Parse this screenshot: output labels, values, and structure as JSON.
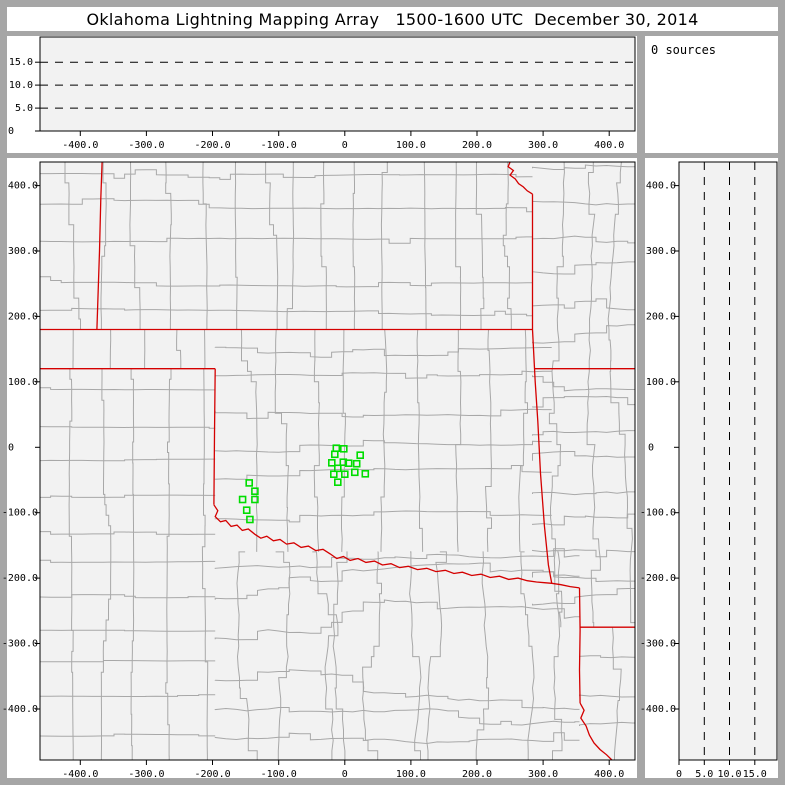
{
  "window": {
    "title": "Oklahoma Lightning Mapping Array   1500-1600 UTC  December 30, 2014"
  },
  "colors": {
    "chrome": "#a6a6a6",
    "panel_bg": "#ffffff",
    "plot_bg": "#f2f2f2",
    "frame": "#000000",
    "county_line": "#a8a8a8",
    "state_border": "#d40000",
    "station": "#00dd00",
    "text": "#000000"
  },
  "chart_data": [
    {
      "id": "alt_ew",
      "type": "scatter",
      "description": "altitude vs east-west distance, empty (no sources)",
      "xlim": [
        -461,
        439
      ],
      "ylim": [
        0,
        20.5
      ],
      "xticks": [
        -400,
        -300,
        -200,
        -100,
        0,
        100,
        200,
        300,
        400
      ],
      "xtick_labels": [
        "-400.0",
        "-300.0",
        "-200.0",
        "-100.0",
        "0",
        "100.0",
        "200.0",
        "300.0",
        "400.0"
      ],
      "yticks": [
        15,
        10,
        5,
        0
      ],
      "ytick_labels": [
        "15.0",
        "10.0",
        "5.0",
        "0"
      ],
      "dashed_y": [
        5,
        10,
        15
      ],
      "points": []
    },
    {
      "id": "sources_hist",
      "type": "histogram",
      "label": "0 sources",
      "points": []
    },
    {
      "id": "map",
      "type": "scatter",
      "description": "plan-view map, green squares are LMA stations, km coordinates",
      "xlim": [
        -461,
        439
      ],
      "ylim": [
        -478,
        436
      ],
      "xticks": [
        -400,
        -300,
        -200,
        -100,
        0,
        100,
        200,
        300,
        400
      ],
      "xtick_labels": [
        "-400.0",
        "-300.0",
        "-200.0",
        "-100.0",
        "0",
        "100.0",
        "200.0",
        "300.0",
        "400.0"
      ],
      "yticks": [
        400,
        300,
        200,
        100,
        0,
        -100,
        -200,
        -300,
        -400
      ],
      "ytick_labels": [
        "400.0",
        "300.0",
        "200.0",
        "100.0",
        "0",
        "-100.0",
        "-200.0",
        "-300.0",
        "-400.0"
      ],
      "stations": [
        [
          -12.8,
          -1.5
        ],
        [
          -1.5,
          -2.3
        ],
        [
          -15.1,
          -10.7
        ],
        [
          23.4,
          -12.2
        ],
        [
          -19.6,
          -23.7
        ],
        [
          -2.3,
          -22.9
        ],
        [
          6.0,
          -24.4
        ],
        [
          18.1,
          -25.2
        ],
        [
          -10.6,
          -32.1
        ],
        [
          15.1,
          -38.2
        ],
        [
          -16.6,
          -41.2
        ],
        [
          0.0,
          -41.2
        ],
        [
          31.0,
          -40.5
        ],
        [
          -10.6,
          -53.4
        ],
        [
          -144.6,
          -54.5
        ],
        [
          -136.0,
          -67.2
        ],
        [
          -154.5,
          -79.8
        ],
        [
          -136.0,
          -79.8
        ],
        [
          -148.3,
          -96.2
        ],
        [
          -143.5,
          -110.4
        ]
      ],
      "state_borders": [
        [
          [
            -461,
            180
          ],
          [
            284,
            180
          ]
        ],
        [
          [
            250,
            436
          ],
          [
            247,
            429
          ],
          [
            255,
            423
          ],
          [
            250,
            416
          ],
          [
            258,
            410
          ],
          [
            263,
            403
          ],
          [
            270,
            398
          ],
          [
            276,
            392
          ],
          [
            284,
            387
          ]
        ],
        [
          [
            284,
            387
          ],
          [
            284,
            180
          ],
          [
            288,
            100
          ],
          [
            292,
            40
          ],
          [
            296,
            -40
          ],
          [
            302,
            -120
          ],
          [
            308,
            -180
          ],
          [
            313,
            -208
          ]
        ],
        [
          [
            287,
            120
          ],
          [
            439,
            120
          ]
        ],
        [
          [
            -367,
            436
          ],
          [
            -369,
            380
          ],
          [
            -371,
            300
          ],
          [
            -373,
            240
          ],
          [
            -375,
            180
          ]
        ],
        [
          [
            -461,
            120
          ],
          [
            -196,
            120
          ]
        ],
        [
          [
            -196,
            120
          ],
          [
            -197,
            20
          ],
          [
            -198,
            -88
          ]
        ],
        [
          [
            -198,
            -88
          ],
          [
            -192,
            -97
          ],
          [
            -196,
            -106
          ],
          [
            -188,
            -114
          ],
          [
            -180,
            -112
          ],
          [
            -172,
            -121
          ],
          [
            -163,
            -119
          ],
          [
            -155,
            -127
          ],
          [
            -146,
            -125
          ],
          [
            -136,
            -133
          ],
          [
            -127,
            -139
          ],
          [
            -118,
            -136
          ],
          [
            -108,
            -143
          ],
          [
            -98,
            -141
          ],
          [
            -88,
            -148
          ],
          [
            -77,
            -146
          ],
          [
            -66,
            -153
          ],
          [
            -55,
            -151
          ],
          [
            -44,
            -158
          ],
          [
            -33,
            -156
          ],
          [
            -22,
            -163
          ],
          [
            -12,
            -170
          ],
          [
            -2,
            -167
          ],
          [
            8,
            -173
          ],
          [
            20,
            -170
          ],
          [
            32,
            -176
          ],
          [
            45,
            -174
          ],
          [
            57,
            -180
          ],
          [
            70,
            -178
          ],
          [
            83,
            -184
          ],
          [
            96,
            -182
          ],
          [
            110,
            -187
          ],
          [
            124,
            -185
          ],
          [
            138,
            -190
          ],
          [
            152,
            -188
          ],
          [
            165,
            -193
          ],
          [
            178,
            -191
          ],
          [
            192,
            -196
          ],
          [
            206,
            -194
          ],
          [
            220,
            -199
          ],
          [
            234,
            -197
          ],
          [
            248,
            -202
          ],
          [
            262,
            -200
          ],
          [
            276,
            -204
          ],
          [
            290,
            -206
          ],
          [
            302,
            -207
          ],
          [
            313,
            -208
          ],
          [
            327,
            -210
          ],
          [
            341,
            -213
          ],
          [
            355,
            -215
          ]
        ],
        [
          [
            355,
            -215
          ],
          [
            356,
            -280
          ],
          [
            355,
            -340
          ],
          [
            356,
            -391
          ]
        ],
        [
          [
            355,
            -275
          ],
          [
            439,
            -275
          ]
        ],
        [
          [
            356,
            -391
          ],
          [
            362,
            -402
          ],
          [
            357,
            -414
          ],
          [
            365,
            -426
          ],
          [
            370,
            -440
          ],
          [
            377,
            -452
          ],
          [
            386,
            -462
          ],
          [
            396,
            -470
          ],
          [
            404,
            -478
          ]
        ]
      ],
      "county_regions": [
        {
          "x": [
            -461,
            284
          ],
          "y": [
            180,
            436
          ],
          "cw": 50,
          "ch": 47,
          "jog": 8,
          "wig": 1,
          "seed": 11
        },
        {
          "x": [
            284,
            439
          ],
          "y": [
            -275,
            436
          ],
          "cw": 50,
          "ch": 46,
          "jog": 14,
          "wig": 4,
          "seed": 22
        },
        {
          "x": [
            -196,
            313
          ],
          "y": [
            -160,
            180
          ],
          "cw": 52,
          "ch": 50,
          "jog": 10,
          "wig": 2,
          "seed": 33
        },
        {
          "x": [
            -461,
            -196
          ],
          "y": [
            120,
            180
          ],
          "cw": 50,
          "ch": 70,
          "jog": 6,
          "wig": 1,
          "seed": 44
        },
        {
          "x": [
            -461,
            -196
          ],
          "y": [
            -478,
            120
          ],
          "cw": 48,
          "ch": 49,
          "jog": 4,
          "wig": 0.6,
          "seed": 55
        },
        {
          "x": [
            -196,
            355
          ],
          "y": [
            -478,
            -160
          ],
          "cw": 56,
          "ch": 52,
          "jog": 16,
          "wig": 5,
          "seed": 66
        },
        {
          "x": [
            355,
            439
          ],
          "y": [
            -478,
            -275
          ],
          "cw": 50,
          "ch": 48,
          "jog": 14,
          "wig": 4,
          "seed": 77
        }
      ]
    },
    {
      "id": "alt_ns",
      "type": "scatter",
      "description": "north-south distance vs altitude, empty (no sources)",
      "xlim": [
        0,
        19.4
      ],
      "ylim": [
        -478,
        436
      ],
      "xticks": [
        0,
        5,
        10,
        15
      ],
      "xtick_labels": [
        "0",
        "5.0",
        "10.0",
        "15.0"
      ],
      "yticks": [
        400,
        300,
        200,
        100,
        0,
        -100,
        -200,
        -300,
        -400
      ],
      "ytick_labels": [
        "400.0",
        "300.0",
        "200.0",
        "100.0",
        "0",
        "-100.0",
        "-200.0",
        "-300.0",
        "-400.0"
      ],
      "dashed_x": [
        5,
        10,
        15
      ],
      "points": []
    }
  ]
}
